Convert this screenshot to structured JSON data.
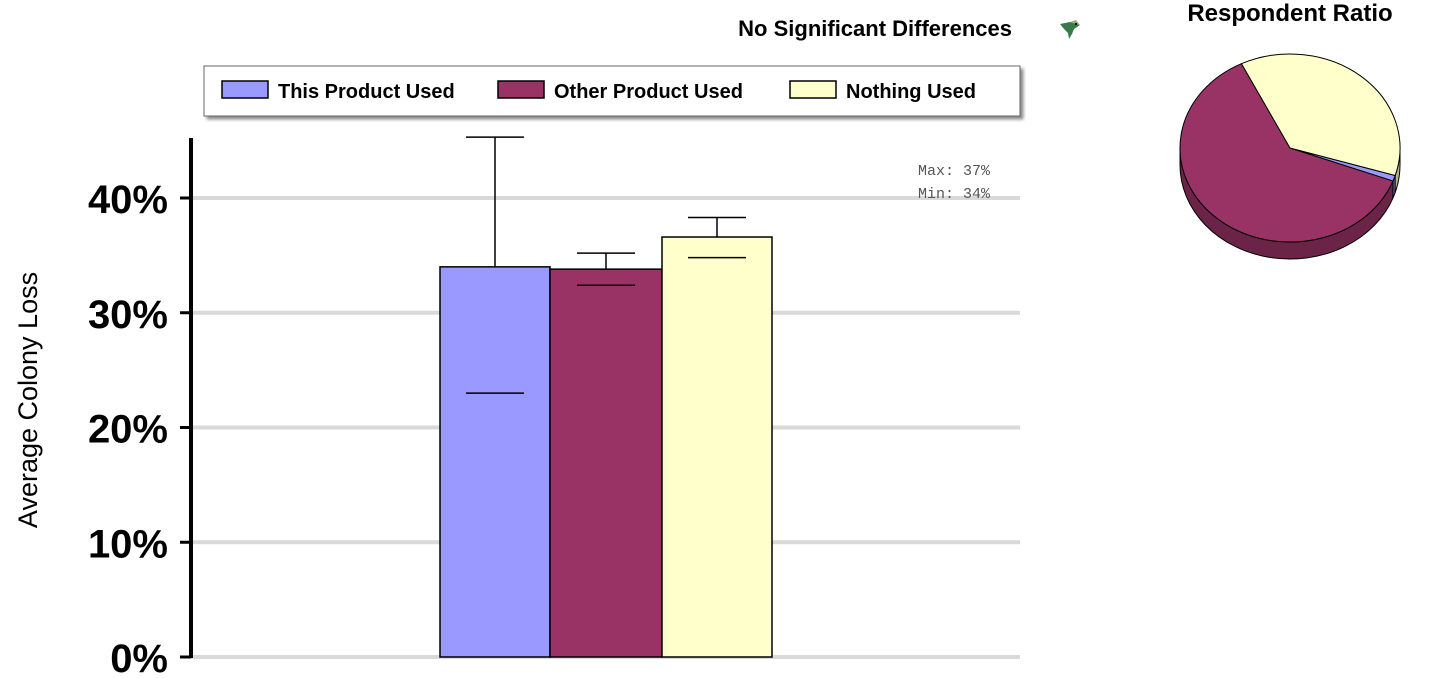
{
  "chart_data": [
    {
      "type": "bar",
      "title": "No Significant Differences",
      "ylabel": "Average Colony Loss",
      "xlabel": "",
      "ylim": [
        0,
        45
      ],
      "yticks": [
        "0%",
        "10%",
        "20%",
        "30%",
        "40%"
      ],
      "ytick_values": [
        0,
        10,
        20,
        30,
        40
      ],
      "grid": true,
      "legend_position": "top",
      "series": [
        {
          "name": "This Product Used",
          "value": 34,
          "err_low": 23,
          "err_high": 45.3,
          "color": "#9999ff"
        },
        {
          "name": "Other Product Used",
          "value": 33.8,
          "err_low": 32.4,
          "err_high": 35.2,
          "color": "#993366"
        },
        {
          "name": "Nothing Used",
          "value": 36.6,
          "err_low": 34.8,
          "err_high": 38.3,
          "color": "#ffffcc"
        }
      ],
      "annotation": {
        "max": "Max: 37%",
        "min": "Min: 34%"
      }
    },
    {
      "type": "pie",
      "title": "Respondent Ratio",
      "slices": [
        {
          "name": "This Product Used",
          "value": 1,
          "color": "#9999ff"
        },
        {
          "name": "Other Product Used",
          "value": 62,
          "color": "#993366"
        },
        {
          "name": "Nothing Used",
          "value": 37,
          "color": "#ffffcc"
        }
      ]
    }
  ],
  "icons": {
    "status": "bird-icon"
  }
}
